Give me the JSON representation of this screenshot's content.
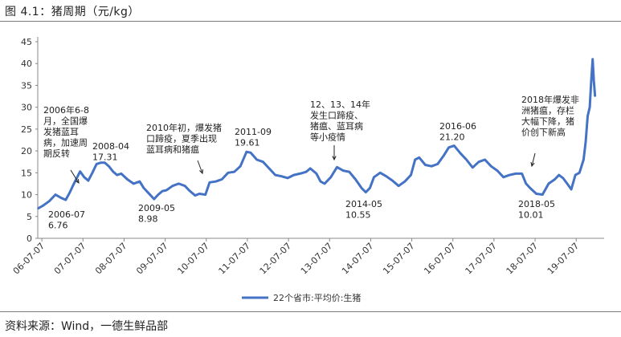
{
  "figure_title": "图 4.1：猪周期（元/kg）",
  "source": "资料来源：Wind，一德生鲜品部",
  "chart_data": {
    "type": "line",
    "title": "",
    "ylim": [
      0,
      45
    ],
    "y_ticks": [
      "0",
      "5",
      "10",
      "15",
      "20",
      "25",
      "30",
      "35",
      "40",
      "45"
    ],
    "x_ticks": [
      "06-07-07",
      "07-07-07",
      "08-07-07",
      "09-07-07",
      "10-07-07",
      "11-07-07",
      "12-07-07",
      "13-07-07",
      "14-07-07",
      "15-07-07",
      "16-07-07",
      "17-07-07",
      "18-07-07",
      "19-07-07"
    ],
    "grid": false,
    "legend_position": "bottom",
    "series": [
      {
        "name": "22个省市:平均价:生猪",
        "color": "#4472c4",
        "x": [
          2006.42,
          2006.55,
          2006.7,
          2006.85,
          2007.0,
          2007.1,
          2007.2,
          2007.3,
          2007.45,
          2007.55,
          2007.65,
          2007.75,
          2007.85,
          2007.95,
          2008.05,
          2008.15,
          2008.25,
          2008.35,
          2008.45,
          2008.6,
          2008.75,
          2008.9,
          2009.0,
          2009.1,
          2009.25,
          2009.35,
          2009.45,
          2009.55,
          2009.7,
          2009.85,
          2010.0,
          2010.1,
          2010.25,
          2010.35,
          2010.5,
          2010.6,
          2010.75,
          2010.9,
          2011.05,
          2011.2,
          2011.35,
          2011.5,
          2011.6,
          2011.75,
          2011.9,
          2012.05,
          2012.2,
          2012.35,
          2012.5,
          2012.65,
          2012.8,
          2012.95,
          2013.05,
          2013.2,
          2013.3,
          2013.4,
          2013.55,
          2013.7,
          2013.85,
          2014.0,
          2014.15,
          2014.3,
          2014.4,
          2014.5,
          2014.6,
          2014.75,
          2014.9,
          2015.05,
          2015.2,
          2015.35,
          2015.5,
          2015.6,
          2015.7,
          2015.85,
          2016.0,
          2016.15,
          2016.3,
          2016.42,
          2016.55,
          2016.7,
          2016.85,
          2017.0,
          2017.15,
          2017.3,
          2017.45,
          2017.6,
          2017.75,
          2017.9,
          2018.05,
          2018.2,
          2018.3,
          2018.4,
          2018.55,
          2018.7,
          2018.85,
          2019.0,
          2019.1,
          2019.2,
          2019.3,
          2019.4,
          2019.5,
          2019.6,
          2019.7,
          2019.75,
          2019.8,
          2019.85,
          2019.88,
          2019.92,
          2019.95,
          2019.98
        ],
        "y": [
          6.8,
          7.5,
          8.5,
          10.0,
          9.2,
          8.8,
          10.5,
          12.5,
          15.3,
          14.0,
          13.2,
          15.0,
          17.0,
          17.3,
          17.3,
          16.5,
          15.3,
          14.5,
          14.8,
          13.5,
          12.5,
          13.0,
          11.5,
          10.5,
          8.98,
          10.0,
          10.8,
          11.0,
          12.0,
          12.5,
          12.0,
          11.0,
          9.8,
          10.2,
          10.0,
          12.8,
          13.0,
          13.5,
          15.0,
          15.2,
          16.5,
          19.8,
          19.6,
          18.0,
          17.5,
          16.0,
          14.5,
          14.2,
          13.8,
          14.5,
          14.8,
          15.2,
          16.0,
          14.8,
          13.0,
          12.5,
          14.0,
          16.3,
          15.5,
          15.2,
          13.5,
          11.5,
          10.55,
          11.5,
          14.0,
          15.0,
          14.2,
          13.2,
          12.0,
          13.0,
          14.5,
          18.0,
          18.5,
          16.8,
          16.5,
          17.0,
          19.0,
          20.8,
          21.2,
          19.5,
          18.0,
          16.2,
          17.5,
          18.0,
          16.5,
          15.5,
          14.0,
          14.5,
          14.8,
          14.8,
          12.5,
          11.5,
          10.2,
          10.01,
          12.5,
          13.5,
          14.5,
          13.8,
          12.5,
          11.2,
          14.5,
          15.0,
          18.0,
          22.0,
          28.0,
          30.0,
          35.0,
          41.0,
          36.0,
          32.5
        ]
      }
    ],
    "annotations": [
      {
        "lines": [
          "2006年6-8",
          "月，全国爆",
          "发猪蓝耳",
          "病，加速周",
          "期反转"
        ],
        "points_to": [
          2007.1,
          9.5
        ]
      },
      {
        "lines": [
          "2008-04",
          "17.31"
        ]
      },
      {
        "lines": [
          "2006-07",
          "6.76"
        ]
      },
      {
        "lines": [
          "2009-05",
          "8.98"
        ]
      },
      {
        "lines": [
          "2010年初，爆发猪",
          "口蹄疫，夏季出现",
          "蓝耳病和猪瘟"
        ],
        "points_to": [
          2010.3,
          10.2
        ]
      },
      {
        "lines": [
          "2011-09",
          "19.61"
        ]
      },
      {
        "lines": [
          "12、13、14年",
          "发生口蹄疫、",
          "猪瘟、蓝耳病",
          "等小疫情"
        ],
        "points_to": [
          2013.1,
          13.0
        ]
      },
      {
        "lines": [
          "2014-05",
          "10.55"
        ]
      },
      {
        "lines": [
          "2016-06",
          "21.20"
        ]
      },
      {
        "lines": [
          "2018-05",
          "10.01"
        ]
      },
      {
        "lines": [
          "2018年爆发非",
          "洲猪瘟，存栏",
          "大幅下降，猪",
          "价创下新高"
        ],
        "points_to": [
          2018.85,
          15.5
        ]
      }
    ]
  }
}
